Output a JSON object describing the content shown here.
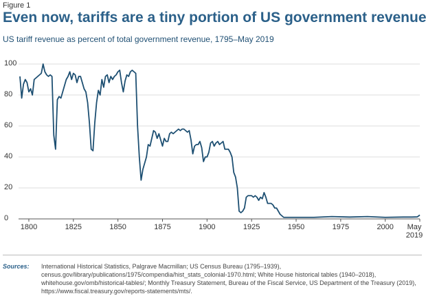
{
  "chart_data": {
    "type": "line",
    "figure_label": "Figure 1",
    "title": "Even now, tariffs are a tiny portion of US government revenue",
    "subtitle": "US tariff revenue as percent of total government revenue, 1795–May 2019",
    "x": [
      1795,
      1796,
      1797,
      1798,
      1799,
      1800,
      1801,
      1802,
      1803,
      1804,
      1805,
      1806,
      1807,
      1808,
      1809,
      1810,
      1811,
      1812,
      1813,
      1814,
      1815,
      1816,
      1817,
      1818,
      1819,
      1820,
      1821,
      1822,
      1823,
      1824,
      1825,
      1826,
      1827,
      1828,
      1829,
      1830,
      1831,
      1832,
      1833,
      1834,
      1835,
      1836,
      1837,
      1838,
      1839,
      1840,
      1841,
      1842,
      1843,
      1844,
      1845,
      1846,
      1847,
      1848,
      1849,
      1850,
      1851,
      1852,
      1853,
      1854,
      1855,
      1856,
      1857,
      1858,
      1859,
      1860,
      1861,
      1862,
      1863,
      1864,
      1865,
      1866,
      1867,
      1868,
      1869,
      1870,
      1871,
      1872,
      1873,
      1874,
      1875,
      1876,
      1877,
      1878,
      1879,
      1880,
      1881,
      1882,
      1883,
      1884,
      1885,
      1886,
      1887,
      1888,
      1889,
      1890,
      1891,
      1892,
      1893,
      1894,
      1895,
      1896,
      1897,
      1898,
      1899,
      1900,
      1901,
      1902,
      1903,
      1904,
      1905,
      1906,
      1907,
      1908,
      1909,
      1910,
      1911,
      1912,
      1913,
      1914,
      1915,
      1916,
      1917,
      1918,
      1919,
      1920,
      1921,
      1922,
      1923,
      1924,
      1925,
      1926,
      1927,
      1928,
      1929,
      1930,
      1931,
      1932,
      1933,
      1934,
      1935,
      1936,
      1937,
      1938,
      1939,
      1940,
      1941,
      1942,
      1943,
      1944,
      1945,
      1950,
      1960,
      1970,
      1980,
      1990,
      2000,
      2010,
      2015,
      2018,
      2019.4
    ],
    "series": [
      {
        "name": "Tariff revenue share",
        "color": "#1d4f72",
        "values": [
          92,
          78,
          87,
          90,
          88,
          82,
          84,
          80,
          90,
          91,
          92,
          93,
          94,
          100,
          95,
          93,
          92,
          93,
          92,
          54,
          45,
          77,
          79,
          78,
          82,
          86,
          90,
          92,
          95,
          90,
          94,
          93,
          88,
          92,
          92,
          88,
          84,
          82,
          75,
          62,
          45,
          44,
          62,
          75,
          83,
          80,
          90,
          85,
          92,
          93,
          88,
          92,
          90,
          92,
          93,
          95,
          96,
          88,
          82,
          89,
          93,
          92,
          95,
          96,
          95,
          94,
          60,
          40,
          25,
          32,
          36,
          40,
          48,
          47,
          52,
          57,
          56,
          52,
          55,
          51,
          47,
          52,
          50,
          50,
          55,
          56,
          55,
          56,
          57,
          58,
          57,
          58,
          58,
          57,
          56,
          57,
          51,
          42,
          47,
          48,
          48,
          50,
          46,
          37,
          40,
          40,
          43,
          49,
          50,
          47,
          49,
          50,
          48,
          49,
          50,
          45,
          45,
          45,
          43,
          40,
          30,
          27,
          20,
          5,
          4,
          5,
          7,
          14,
          15,
          15,
          15,
          14,
          15,
          14,
          12,
          14,
          13,
          17,
          14,
          10,
          10,
          10,
          9,
          7,
          7,
          5,
          3,
          2,
          1,
          1,
          1,
          1,
          1,
          1.5,
          1.2,
          1.5,
          1,
          1.2,
          1.2,
          1.3,
          2.5
        ]
      }
    ],
    "xlim": [
      1795,
      2019.4
    ],
    "ylim": [
      0,
      100
    ],
    "xticks": [
      1800,
      1825,
      1850,
      1875,
      1900,
      1925,
      1950,
      1975,
      2000,
      {
        "value": 2019.4,
        "label": "May 2019"
      }
    ],
    "yticks": [
      0,
      20,
      40,
      60,
      80,
      100
    ],
    "grid": true,
    "footnote": {
      "label": "Sources:",
      "text": "International Historical Statistics, Palgrave Macmillan; US Census Bureau (1795–1939), census.gov/library/publications/1975/compendia/hist_stats_colonial-1970.html; White House historical tables (1940–2018), whitehouse.gov/omb/historical-tables/; Monthly Treasury Statement, Bureau of the Fiscal Service, US Department of the Treasury (2019), https://www.fiscal.treasury.gov/reports-statements/mts/."
    }
  }
}
